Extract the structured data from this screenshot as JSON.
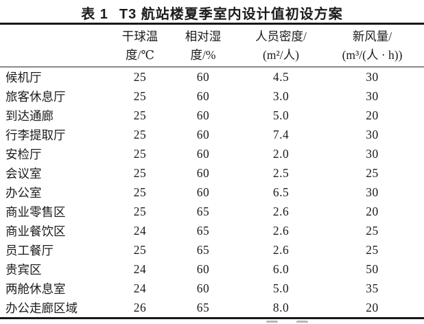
{
  "page": {
    "background": "#ffffff",
    "text_color": "#1b1b1b",
    "rule_color": "#161616"
  },
  "caption": {
    "label": "表 1",
    "title": "T3 航站楼夏季室内设计值初设方案"
  },
  "table": {
    "columns": [
      {
        "key": "name",
        "header_line1": "",
        "header_line2": ""
      },
      {
        "key": "dry_bulb",
        "header_line1": "干球温",
        "header_line2": "度/℃"
      },
      {
        "key": "rh",
        "header_line1": "相对湿",
        "header_line2": "度/%"
      },
      {
        "key": "density",
        "header_line1": "人员密度/",
        "header_line2": "(m²/人)"
      },
      {
        "key": "fresh_air",
        "header_line1": "新风量/",
        "header_line2": "(m³/(人 · h))"
      }
    ],
    "rows": [
      {
        "name": "候机厅",
        "dry_bulb": "25",
        "rh": "60",
        "density": "4.5",
        "fresh_air": "30"
      },
      {
        "name": "旅客休息厅",
        "dry_bulb": "25",
        "rh": "60",
        "density": "3.0",
        "fresh_air": "30"
      },
      {
        "name": "到达通廊",
        "dry_bulb": "25",
        "rh": "60",
        "density": "5.0",
        "fresh_air": "20"
      },
      {
        "name": "行李提取厅",
        "dry_bulb": "25",
        "rh": "60",
        "density": "7.4",
        "fresh_air": "30"
      },
      {
        "name": "安检厅",
        "dry_bulb": "25",
        "rh": "60",
        "density": "2.0",
        "fresh_air": "30"
      },
      {
        "name": "会议室",
        "dry_bulb": "25",
        "rh": "60",
        "density": "2.5",
        "fresh_air": "25"
      },
      {
        "name": "办公室",
        "dry_bulb": "25",
        "rh": "60",
        "density": "6.5",
        "fresh_air": "30"
      },
      {
        "name": "商业零售区",
        "dry_bulb": "25",
        "rh": "65",
        "density": "2.6",
        "fresh_air": "20"
      },
      {
        "name": "商业餐饮区",
        "dry_bulb": "24",
        "rh": "65",
        "density": "2.6",
        "fresh_air": "25"
      },
      {
        "name": "员工餐厅",
        "dry_bulb": "25",
        "rh": "65",
        "density": "2.6",
        "fresh_air": "25"
      },
      {
        "name": "贵宾区",
        "dry_bulb": "24",
        "rh": "60",
        "density": "6.0",
        "fresh_air": "50"
      },
      {
        "name": "两舱休息室",
        "dry_bulb": "24",
        "rh": "60",
        "density": "5.0",
        "fresh_air": "35"
      },
      {
        "name": "办公走廊区域",
        "dry_bulb": "26",
        "rh": "65",
        "density": "8.0",
        "fresh_air": "20"
      }
    ]
  }
}
